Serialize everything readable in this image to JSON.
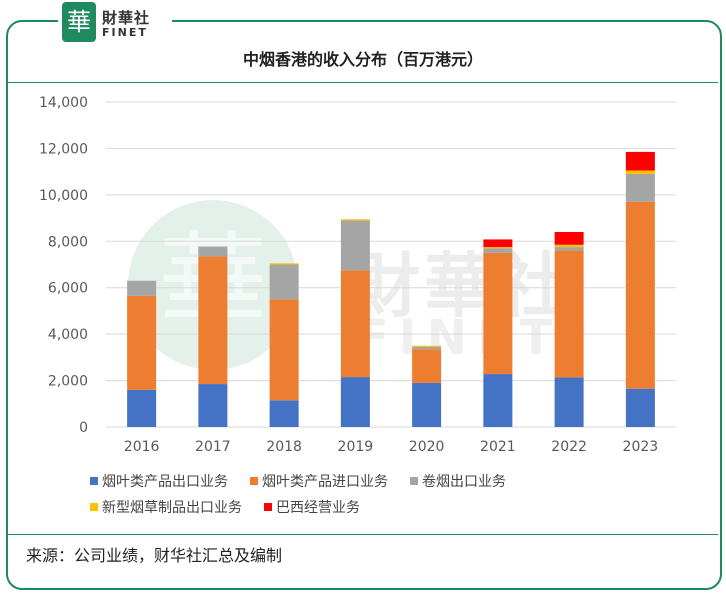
{
  "brand": {
    "seal_text": "華",
    "name_cn": "財華社",
    "name_en": "FINET"
  },
  "watermark": {
    "seal_text": "華",
    "name_cn": "財華社",
    "name_en": "FINET"
  },
  "colors": {
    "frame": "#1f8a5e",
    "series": [
      "#4472c4",
      "#ed7d31",
      "#a5a5a5",
      "#ffc000",
      "#ff0000"
    ]
  },
  "source": "来源：公司业绩，财华社汇总及编制",
  "chart_data": {
    "type": "bar",
    "stacked": true,
    "title": "中烟香港的收入分布（百万港元）",
    "xlabel": "",
    "ylabel": "",
    "ylim": [
      0,
      14000
    ],
    "yticks": [
      0,
      2000,
      4000,
      6000,
      8000,
      10000,
      12000,
      14000
    ],
    "ytick_labels": [
      "0",
      "2,000",
      "4,000",
      "6,000",
      "8,000",
      "10,000",
      "12,000",
      "14,000"
    ],
    "grid": true,
    "legend_position": "bottom-left",
    "categories": [
      "2016",
      "2017",
      "2018",
      "2019",
      "2020",
      "2021",
      "2022",
      "2023"
    ],
    "series": [
      {
        "name": "烟叶类产品出口业务",
        "values": [
          1600,
          1850,
          1150,
          2150,
          1900,
          2280,
          2130,
          1650
        ]
      },
      {
        "name": "烟叶类产品进口业务",
        "values": [
          4050,
          5500,
          4350,
          4600,
          1450,
          5220,
          5470,
          8050
        ]
      },
      {
        "name": "卷烟出口业务",
        "values": [
          650,
          420,
          1500,
          2150,
          100,
          200,
          150,
          1200
        ]
      },
      {
        "name": "新型烟草制品出口业务",
        "values": [
          0,
          0,
          50,
          50,
          50,
          50,
          100,
          150
        ]
      },
      {
        "name": "巴西经营业务",
        "values": [
          0,
          0,
          0,
          0,
          0,
          330,
          550,
          800
        ]
      }
    ]
  }
}
